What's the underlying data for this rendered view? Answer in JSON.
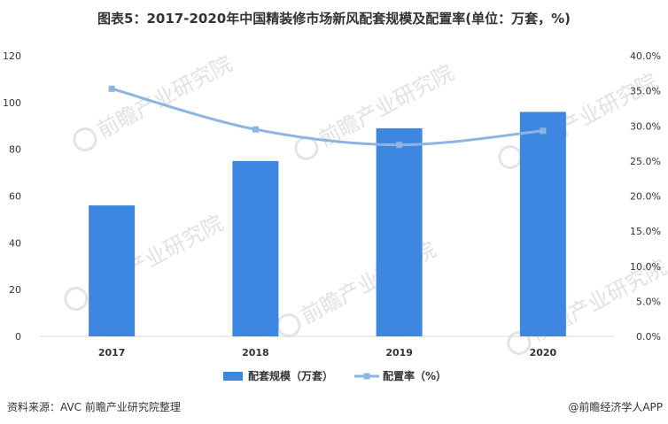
{
  "title": "图表5：2017-2020年中国精装修市场新风配套规模及配置率(单位：万套，%)",
  "source": "资料来源：AVC 前瞻产业研究院整理",
  "brand": "@前瞻经济学人APP",
  "watermark": "前瞻产业研究院",
  "chart_data": {
    "type": "bar",
    "categories": [
      "2017",
      "2018",
      "2019",
      "2020"
    ],
    "series": [
      {
        "name": "配套规模（万套）",
        "type": "bar",
        "axis": "left",
        "color": "#3e87e0",
        "values": [
          56,
          75,
          89,
          96
        ]
      },
      {
        "name": "配置率（%）",
        "type": "line",
        "axis": "right",
        "color": "#8db4e2",
        "values": [
          35.3,
          29.5,
          27.3,
          29.3
        ]
      }
    ],
    "y_left": {
      "min": 0,
      "max": 120,
      "ticks": [
        "0",
        "20",
        "40",
        "60",
        "80",
        "100",
        "120"
      ]
    },
    "y_right": {
      "min": 0,
      "max": 40,
      "ticks": [
        "0.0%",
        "5.0%",
        "10.0%",
        "15.0%",
        "20.0%",
        "25.0%",
        "30.0%",
        "35.0%",
        "40.0%"
      ]
    },
    "grid": false,
    "legend": "bottom"
  }
}
